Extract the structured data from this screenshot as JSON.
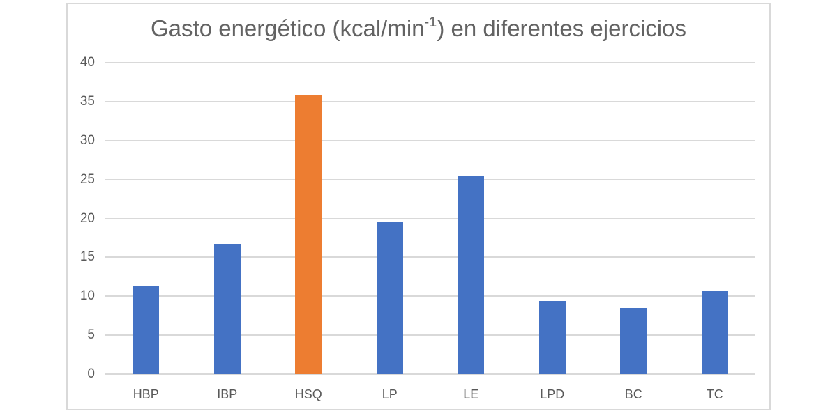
{
  "chart_data": {
    "type": "bar",
    "title": {
      "prefix": "Gasto energético (kcal/min",
      "superscript": "-1",
      "suffix": ") en diferentes ejercicios",
      "full": "Gasto energético (kcal/min⁻¹) en diferentes ejercicios"
    },
    "categories": [
      "HBP",
      "IBP",
      "HSQ",
      "LP",
      "LE",
      "LPD",
      "BC",
      "TC"
    ],
    "values": [
      11.4,
      16.7,
      35.9,
      19.6,
      25.5,
      9.4,
      8.5,
      10.7
    ],
    "series": [
      {
        "name": "Gasto energético",
        "values": [
          11.4,
          16.7,
          35.9,
          19.6,
          25.5,
          9.4,
          8.5,
          10.7
        ]
      }
    ],
    "highlight_index": 2,
    "bar_color": "#4472C4",
    "highlight_color": "#ED7D31",
    "ylim": [
      0,
      40
    ],
    "ytick_step": 5,
    "ytick_labels": [
      "0",
      "5",
      "10",
      "15",
      "20",
      "25",
      "30",
      "35",
      "40"
    ],
    "xlabel": "",
    "ylabel": "",
    "grid": true,
    "gridline_color": "#d9d9d9",
    "axis_text_color": "#595959",
    "legend": "none"
  }
}
